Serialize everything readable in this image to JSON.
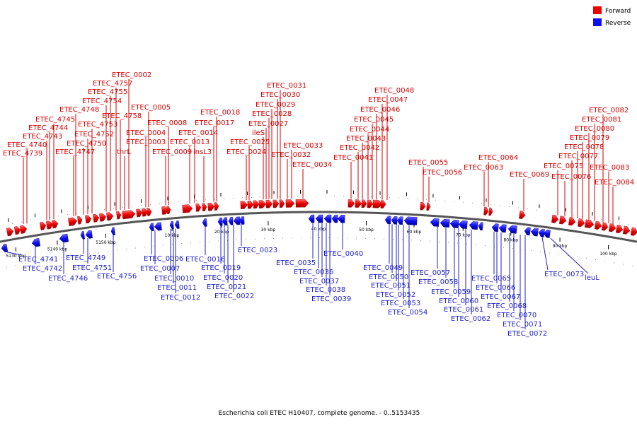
{
  "legend": [
    {
      "label": "Forward",
      "color": "#ee0000"
    },
    {
      "label": "Reverse",
      "color": "#1010ee"
    }
  ],
  "caption": "Escherichia coli ETEC H10407, complete genome. - 0..5153435",
  "ticks": [
    {
      "label": "5130 kbp",
      "pos": 0.025
    },
    {
      "label": "5140 kbp",
      "pos": 0.09
    },
    {
      "label": "5150 kbp",
      "pos": 0.166
    },
    {
      "label": "10 kbp",
      "pos": 0.27
    },
    {
      "label": "20 kbp",
      "pos": 0.348
    },
    {
      "label": "30 kbp",
      "pos": 0.421
    },
    {
      "label": "40 kbp",
      "pos": 0.5
    },
    {
      "label": "50 kbp",
      "pos": 0.575
    },
    {
      "label": "60 kbp",
      "pos": 0.65
    },
    {
      "label": "70 kbp",
      "pos": 0.727
    },
    {
      "label": "80 kbp",
      "pos": 0.802
    },
    {
      "label": "90 kbp",
      "pos": 0.879
    },
    {
      "label": "100 kbp",
      "pos": 0.955
    }
  ],
  "forward_labels": [
    "ETEC_4739",
    "ETEC_4740",
    "ETEC_4743",
    "ETEC_4744",
    "ETEC_4745",
    "ETEC_4747",
    "ETEC_4748",
    "ETEC_4750",
    "ETEC_4752",
    "ETEC_4753",
    "ETEC_4754",
    "ETEC_4755",
    "ETEC_4757",
    "ETEC_0002",
    "ETEC_4758",
    "thrL",
    "ETEC_0003",
    "ETEC_0004",
    "ETEC_0005",
    "ETEC_0009",
    "ETEC_0008",
    "ETEC_0013",
    "ETEC_0014",
    "insL3",
    "ETEC_0017",
    "ETEC_0018",
    "ETEC_0024",
    "ETEC_0025",
    "ileS",
    "ETEC_0027",
    "ETEC_0028",
    "ETEC_0029",
    "ETEC_0030",
    "ETEC_0031",
    "ETEC_0032",
    "ETEC_0033",
    "ETEC_0034",
    "ETEC_0041",
    "ETEC_0042",
    "ETEC_0043",
    "ETEC_0044",
    "ETEC_0045",
    "ETEC_0046",
    "ETEC_0047",
    "ETEC_0048",
    "ETEC_0055",
    "ETEC_0056",
    "ETEC_0063",
    "ETEC_0064",
    "ETEC_0069",
    "ETEC_0075",
    "ETEC_0076",
    "ETEC_0077",
    "ETEC_0078",
    "ETEC_0079",
    "ETEC_0080",
    "ETEC_0081",
    "ETEC_0082",
    "ETEC_0083",
    "ETEC_0084"
  ],
  "reverse_labels": [
    "ETEC_4741",
    "ETEC_4742",
    "ETEC_4746",
    "ETEC_4749",
    "ETEC_4751",
    "ETEC_4756",
    "ETEC_0006",
    "ETEC_0007",
    "ETEC_0010",
    "ETEC_0011",
    "ETEC_0012",
    "ETEC_0016",
    "ETEC_0019",
    "ETEC_0020",
    "ETEC_0021",
    "ETEC_0022",
    "ETEC_0023",
    "ETEC_0035",
    "ETEC_0036",
    "ETEC_0037",
    "ETEC_0038",
    "ETEC_0039",
    "ETEC_0040",
    "ETEC_0049",
    "ETEC_0050",
    "ETEC_0051",
    "ETEC_0052",
    "ETEC_0053",
    "ETEC_0054",
    "ETEC_0057",
    "ETEC_0058",
    "ETEC_0059",
    "ETEC_0060",
    "ETEC_0061",
    "ETEC_0062",
    "ETEC_0065",
    "ETEC_0066",
    "ETEC_0067",
    "ETEC_0068",
    "ETEC_0070",
    "ETEC_0071",
    "ETEC_0072",
    "ETEC_0073",
    "leuL"
  ]
}
